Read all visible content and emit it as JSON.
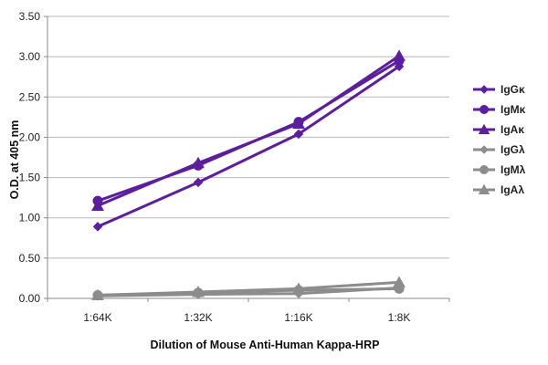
{
  "chart_data": {
    "type": "line",
    "title": "",
    "xlabel": "Dilution of Mouse Anti-Human Kappa-HRP",
    "ylabel": "O.D. at 405 nm",
    "categories": [
      "1:64K",
      "1:32K",
      "1:16K",
      "1:8K"
    ],
    "ylim": [
      0,
      3.5
    ],
    "yticks": [
      "0.00",
      "0.50",
      "1.00",
      "1.50",
      "2.00",
      "2.50",
      "3.00",
      "3.50"
    ],
    "grid": "horizontal",
    "legend_position": "right",
    "series": [
      {
        "name": "IgGκ",
        "values": [
          0.89,
          1.44,
          2.04,
          2.88
        ],
        "color": "#5b1e9e",
        "marker": "diamond"
      },
      {
        "name": "IgMκ",
        "values": [
          1.21,
          1.65,
          2.19,
          2.95
        ],
        "color": "#5b1e9e",
        "marker": "circle"
      },
      {
        "name": "IgAκ",
        "values": [
          1.15,
          1.68,
          2.17,
          3.01
        ],
        "color": "#5b1e9e",
        "marker": "triangle"
      },
      {
        "name": "IgGλ",
        "values": [
          0.03,
          0.05,
          0.06,
          0.13
        ],
        "color": "#8c8c8c",
        "marker": "diamond"
      },
      {
        "name": "IgMλ",
        "values": [
          0.04,
          0.07,
          0.1,
          0.12
        ],
        "color": "#8c8c8c",
        "marker": "circle"
      },
      {
        "name": "IgAλ",
        "values": [
          0.04,
          0.08,
          0.12,
          0.2
        ],
        "color": "#8c8c8c",
        "marker": "triangle"
      }
    ]
  }
}
